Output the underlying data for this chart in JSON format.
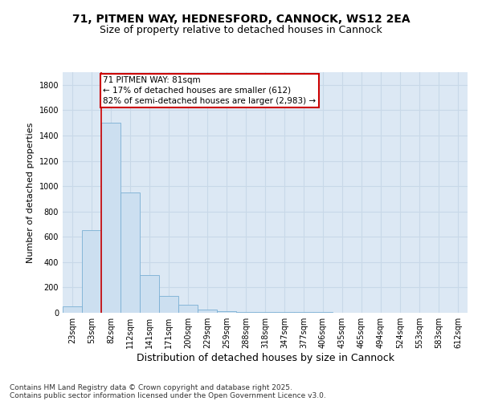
{
  "title": "71, PITMEN WAY, HEDNESFORD, CANNOCK, WS12 2EA",
  "subtitle": "Size of property relative to detached houses in Cannock",
  "xlabel": "Distribution of detached houses by size in Cannock",
  "ylabel": "Number of detached properties",
  "categories": [
    "23sqm",
    "53sqm",
    "82sqm",
    "112sqm",
    "141sqm",
    "171sqm",
    "200sqm",
    "229sqm",
    "259sqm",
    "288sqm",
    "318sqm",
    "347sqm",
    "377sqm",
    "406sqm",
    "435sqm",
    "465sqm",
    "494sqm",
    "524sqm",
    "553sqm",
    "583sqm",
    "612sqm"
  ],
  "values": [
    48,
    650,
    1500,
    950,
    295,
    130,
    65,
    25,
    10,
    8,
    5,
    5,
    5,
    5,
    0,
    0,
    0,
    0,
    0,
    0,
    0
  ],
  "bar_color": "#ccdff0",
  "bar_edge_color": "#7aafd4",
  "annotation_box_text": "71 PITMEN WAY: 81sqm\n← 17% of detached houses are smaller (612)\n82% of semi-detached houses are larger (2,983) →",
  "vline_color": "#cc0000",
  "vline_x": 1.5,
  "ylim": [
    0,
    1900
  ],
  "yticks": [
    0,
    200,
    400,
    600,
    800,
    1000,
    1200,
    1400,
    1600,
    1800
  ],
  "grid_color": "#c8d8e8",
  "background_color": "#dce8f4",
  "footer_line1": "Contains HM Land Registry data © Crown copyright and database right 2025.",
  "footer_line2": "Contains public sector information licensed under the Open Government Licence v3.0.",
  "title_fontsize": 10,
  "subtitle_fontsize": 9,
  "axis_label_fontsize": 8,
  "tick_fontsize": 7,
  "annotation_fontsize": 7.5,
  "footer_fontsize": 6.5
}
